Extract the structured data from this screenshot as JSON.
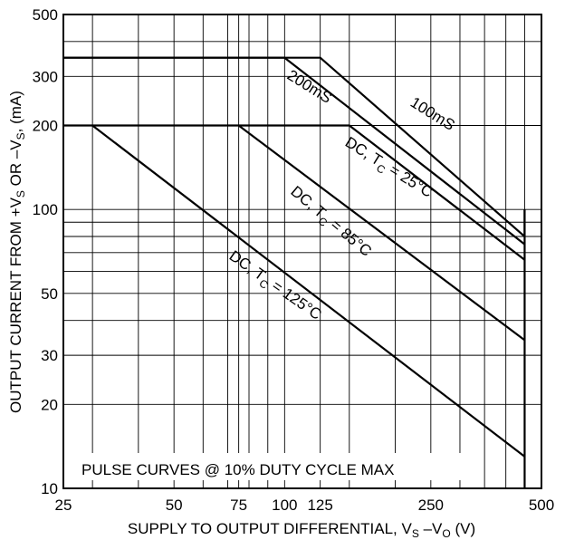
{
  "chart_data": {
    "type": "line",
    "x_scale": "log",
    "y_scale": "log",
    "xlim": [
      25,
      500
    ],
    "ylim": [
      10,
      500
    ],
    "grid": true,
    "x_ticks": [
      25,
      50,
      75,
      100,
      125,
      250,
      500
    ],
    "x_ticks_labeled": [
      25,
      50,
      75,
      100,
      125,
      250,
      500
    ],
    "x_grid": [
      25,
      30,
      40,
      50,
      60,
      70,
      75,
      80,
      90,
      100,
      125,
      150,
      200,
      250,
      300,
      350,
      400,
      450,
      500
    ],
    "y_ticks": [
      10,
      20,
      30,
      50,
      100,
      200,
      300,
      500
    ],
    "y_ticks_labeled": [
      10,
      20,
      30,
      50,
      100,
      200,
      300,
      500
    ],
    "y_grid": [
      10,
      20,
      30,
      40,
      50,
      60,
      70,
      80,
      90,
      100,
      200,
      300,
      400,
      500
    ],
    "xlabel_main": "SUPPLY TO OUTPUT DIFFERENTIAL, V",
    "xlabel_sub1": "S",
    "xlabel_mid": " –V",
    "xlabel_sub2": "O",
    "xlabel_tail": " (V)",
    "ylabel_main": "OUTPUT CURRENT FROM +V",
    "ylabel_sub1": "S",
    "ylabel_mid": " OR –V",
    "ylabel_sub2": "S",
    "ylabel_tail": ", (mA)",
    "annotation": "PULSE CURVES @ 10% DUTY CYCLE MAX",
    "boundary": {
      "x": 450,
      "y_from": 10,
      "y_to": 100
    },
    "series": [
      {
        "name_main": "100mS",
        "points": [
          [
            25,
            350
          ],
          [
            125,
            350
          ],
          [
            450,
            80
          ],
          [
            450,
            100
          ]
        ]
      },
      {
        "name_main": "200mS",
        "points": [
          [
            25,
            350
          ],
          [
            100,
            350
          ],
          [
            450,
            75
          ]
        ]
      },
      {
        "name_main": "DC, T",
        "name_sub": "C",
        "name_tail": " = 25°C",
        "points": [
          [
            25,
            200
          ],
          [
            150,
            200
          ],
          [
            450,
            66
          ]
        ]
      },
      {
        "name_main": "DC, T",
        "name_sub": "C",
        "name_tail": " = 85°C",
        "points": [
          [
            75,
            200
          ],
          [
            450,
            34
          ]
        ]
      },
      {
        "name_main": "DC, T",
        "name_sub": "C",
        "name_tail": " = 125°C",
        "points": [
          [
            30,
            200
          ],
          [
            450,
            13
          ]
        ]
      }
    ]
  }
}
